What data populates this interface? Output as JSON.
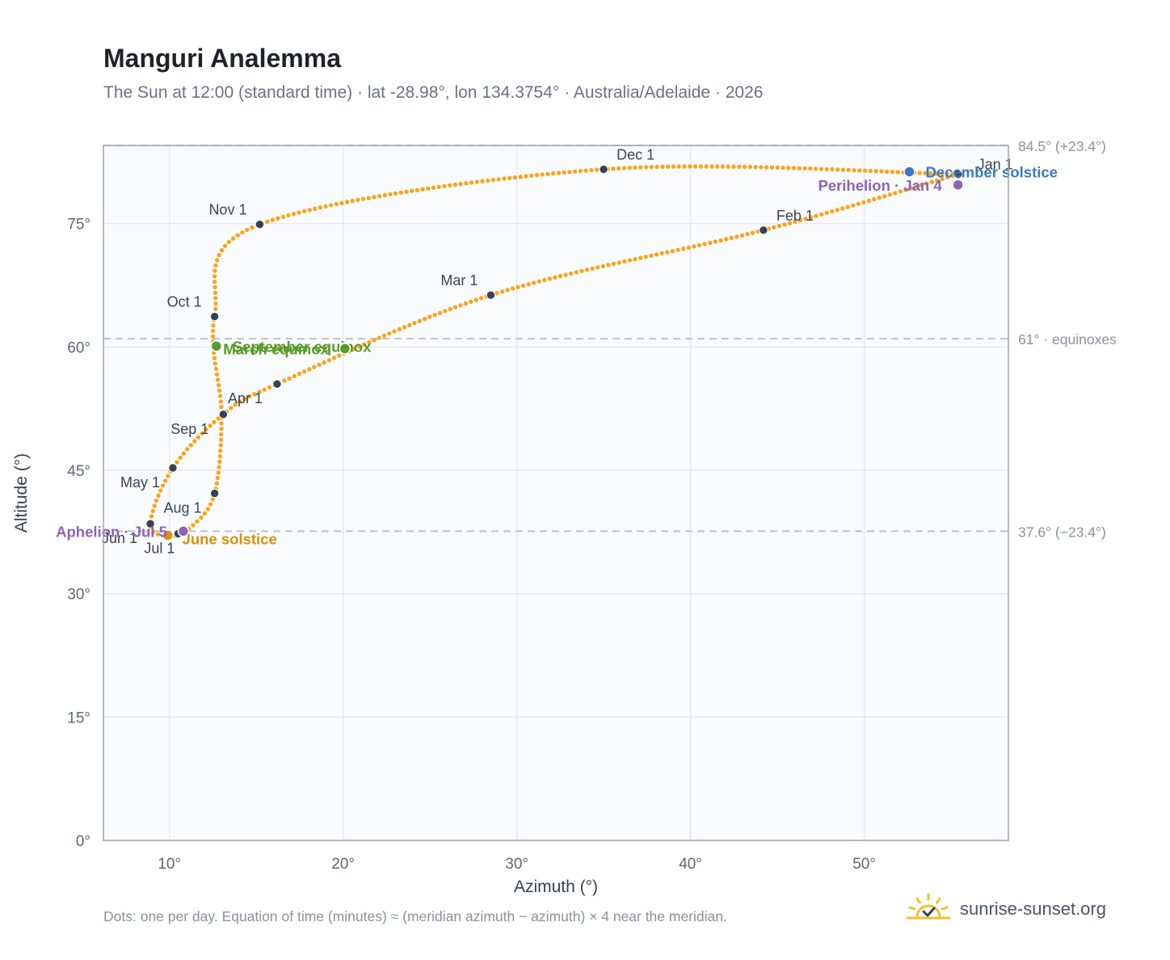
{
  "header": {
    "title": "Manguri Analemma",
    "subtitle": "The Sun at 12:00 (standard time) · lat -28.98°, lon 134.3754° · Australia/Adelaide · 2026"
  },
  "footer": {
    "note": "Dots: one per day. Equation of time (minutes) ≈ (meridian azimuth − azimuth) × 4 near the meridian.",
    "brand": "sunrise-sunset.org"
  },
  "colors": {
    "curve": "#f5a623",
    "month_marker": "#374151",
    "december_solstice": "#3a78c3",
    "june_solstice": "#d4920e",
    "equinox": "#5a9a2c",
    "perihelion_aphelion": "#8e63b5",
    "reference_line": "#b4bfcb",
    "frame": "#9aa4b0",
    "grid": "#e6e9ed",
    "plot_background": "#fafbfd"
  },
  "chart_data": {
    "type": "scatter",
    "title": "Manguri Analemma",
    "xlabel": "Azimuth (°)",
    "ylabel": "Altitude (°)",
    "xlim": [
      6.2,
      58.3
    ],
    "ylim": [
      0,
      84.5
    ],
    "x_ticks": [
      10,
      20,
      30,
      40,
      50
    ],
    "y_ticks": [
      0,
      15,
      30,
      45,
      60,
      75
    ],
    "x_tick_labels": [
      "10°",
      "20°",
      "30°",
      "40°",
      "50°"
    ],
    "y_tick_labels": [
      "0°",
      "15°",
      "30°",
      "45°",
      "60°",
      "75°"
    ],
    "grid": true,
    "reference_lines": [
      {
        "altitude": 84.5,
        "label": "84.5° (+23.4°)"
      },
      {
        "altitude": 61,
        "label": "61° · equinoxes"
      },
      {
        "altitude": 37.6,
        "label": "37.6° (−23.4°)"
      }
    ],
    "analemma_path": [
      {
        "azimuth": 55.4,
        "altitude": 81.0
      },
      {
        "azimuth": 44.2,
        "altitude": 74.2
      },
      {
        "azimuth": 28.5,
        "altitude": 66.3
      },
      {
        "azimuth": 16.2,
        "altitude": 55.5
      },
      {
        "azimuth": 13.1,
        "altitude": 51.8
      },
      {
        "azimuth": 10.2,
        "altitude": 45.3
      },
      {
        "azimuth": 8.9,
        "altitude": 38.5
      },
      {
        "azimuth": 10.0,
        "altitude": 37.0
      },
      {
        "azimuth": 11.3,
        "altitude": 38.2
      },
      {
        "azimuth": 12.6,
        "altitude": 42.2
      },
      {
        "azimuth": 13.0,
        "altitude": 51.8
      },
      {
        "azimuth": 12.6,
        "altitude": 63.7
      },
      {
        "azimuth": 15.2,
        "altitude": 74.9
      },
      {
        "azimuth": 35.0,
        "altitude": 81.6
      },
      {
        "azimuth": 55.4,
        "altitude": 81.0
      }
    ],
    "month_markers": [
      {
        "label": "Jan 1",
        "azimuth": 55.4,
        "altitude": 81.0
      },
      {
        "label": "Feb 1",
        "azimuth": 44.2,
        "altitude": 74.2
      },
      {
        "label": "Mar 1",
        "azimuth": 28.5,
        "altitude": 66.3
      },
      {
        "label": "Apr 1",
        "azimuth": 16.2,
        "altitude": 55.5
      },
      {
        "label": "May 1",
        "azimuth": 10.2,
        "altitude": 45.3
      },
      {
        "label": "Jun 1",
        "azimuth": 8.9,
        "altitude": 38.5
      },
      {
        "label": "Jul 1",
        "azimuth": 10.5,
        "altitude": 37.3
      },
      {
        "label": "Aug 1",
        "azimuth": 12.6,
        "altitude": 42.2
      },
      {
        "label": "Sep 1",
        "azimuth": 13.1,
        "altitude": 51.8
      },
      {
        "label": "Oct 1",
        "azimuth": 12.6,
        "altitude": 63.7
      },
      {
        "label": "Nov 1",
        "azimuth": 15.2,
        "altitude": 74.9
      },
      {
        "label": "Dec 1",
        "azimuth": 35.0,
        "altitude": 81.6
      }
    ],
    "events": [
      {
        "label": "December solstice",
        "azimuth": 52.6,
        "altitude": 81.3,
        "color": "#3a78c3"
      },
      {
        "label": "Perihelion · Jan 4",
        "azimuth": 55.4,
        "altitude": 79.7,
        "color": "#8e63b5"
      },
      {
        "label": "September equinox",
        "azimuth": 12.7,
        "altitude": 60.1,
        "color": "#5a9a2c"
      },
      {
        "label": "March equinox",
        "azimuth": 20.1,
        "altitude": 59.8,
        "color": "#5a9a2c"
      },
      {
        "label": "June solstice",
        "azimuth": 9.9,
        "altitude": 37.1,
        "color": "#d4920e"
      },
      {
        "label": "Aphelion · Jul 5",
        "azimuth": 10.8,
        "altitude": 37.6,
        "color": "#8e63b5"
      }
    ]
  }
}
